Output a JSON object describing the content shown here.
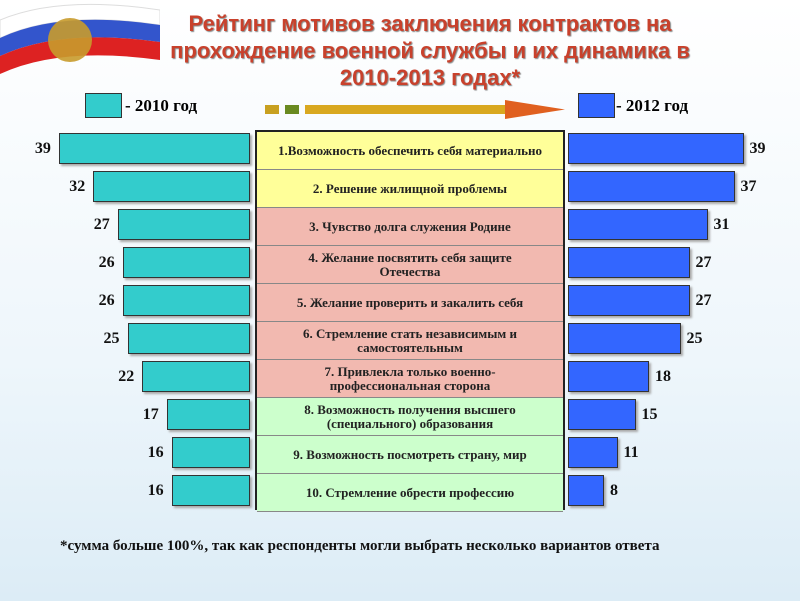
{
  "chart_data": {
    "type": "bar",
    "title": "Рейтинг мотивов заключения контрактов на прохождение военной службы и их динамика в 2010-2013 годах*",
    "categories": [
      "1.Возможность обеспечить себя материально",
      "2. Решение жилищной проблемы",
      "3. Чувство долга служения Родине",
      "4. Желание посвятить себя защите Отечества",
      "5. Желание проверить и закалить себя",
      "6. Стремление стать независимым и самостоятельным",
      "7. Привлекла только военно-профессиональная сторона",
      "8. Возможность получения высшего (специального) образования",
      "9. Возможность посмотреть страну, мир",
      "10. Стремление обрести профессию"
    ],
    "series": [
      {
        "name": "- 2010 год",
        "color": "#33cccc",
        "values": [
          39,
          32,
          27,
          26,
          26,
          25,
          22,
          17,
          16,
          16
        ]
      },
      {
        "name": "- 2012 год",
        "color": "#3366ff",
        "values": [
          39,
          37,
          31,
          27,
          27,
          25,
          18,
          15,
          11,
          8
        ]
      }
    ],
    "footnote": "*сумма больше 100%, так как респонденты могли выбрать несколько вариантов ответа"
  }
}
